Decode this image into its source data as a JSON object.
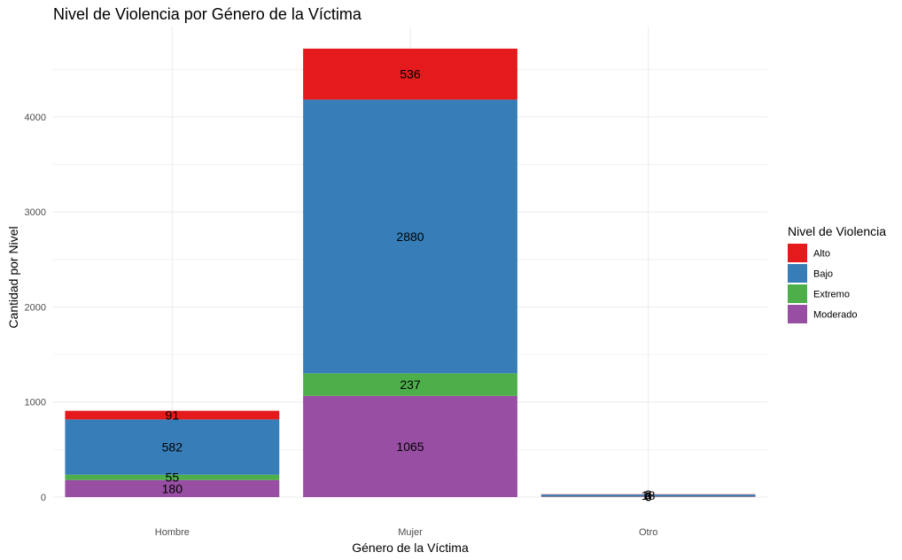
{
  "chart_data": {
    "type": "bar",
    "stacked": true,
    "title": "Nivel de Violencia por Género de la Víctima",
    "xlabel": "Género de la Víctima",
    "ylabel": "Cantidad por Nivel",
    "categories": [
      "Hombre",
      "Mujer",
      "Otro"
    ],
    "ylim": [
      0,
      4950
    ],
    "yticks": [
      0,
      1000,
      2000,
      3000,
      4000
    ],
    "grid": true,
    "legend": {
      "title": "Nivel de Violencia",
      "placement": "right"
    },
    "series": [
      {
        "name": "Moderado",
        "color": "#984EA3",
        "values": [
          180,
          1065,
          6
        ]
      },
      {
        "name": "Extremo",
        "color": "#4DAF4A",
        "values": [
          55,
          237,
          3
        ]
      },
      {
        "name": "Bajo",
        "color": "#377EB8",
        "values": [
          582,
          2880,
          18
        ]
      },
      {
        "name": "Alto",
        "color": "#E41A1C",
        "values": [
          91,
          536,
          3
        ]
      }
    ],
    "legend_order": [
      "Alto",
      "Bajo",
      "Extremo",
      "Moderado"
    ],
    "bar_labels": [
      [
        "180",
        "1065",
        "6"
      ],
      [
        "55",
        "237",
        "3"
      ],
      [
        "582",
        "2880",
        "18"
      ],
      [
        "91",
        "536",
        "3"
      ]
    ]
  }
}
